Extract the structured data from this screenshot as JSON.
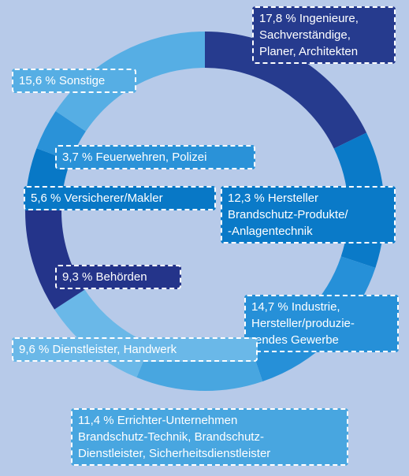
{
  "chart_data": {
    "type": "donut",
    "categories": [
      "Ingenieure,\nSachverständige,\nPlaner, Architekten",
      "Hersteller\nBrandschutz-Produkte/\n-Anlagentechnik",
      "Industrie,\nHersteller/produzie-\nrendes Gewerbe",
      "Errichter-Unternehmen\nBrandschutz-Technik, Brandschutz-\nDienstleister, Sicherheitsdienstleister",
      "Dienstleister, Handwerk",
      "Behörden",
      "Versicherer/Makler",
      "Feuerwehren, Polizei",
      "Sonstige"
    ],
    "values": [
      17.8,
      12.3,
      14.7,
      11.4,
      9.6,
      9.3,
      5.6,
      3.7,
      15.6
    ],
    "value_labels": [
      "17,8 %",
      "12,3 %",
      "14,7 %",
      "11,4 %",
      "9,6 %",
      "9,3 %",
      "5,6 %",
      "3,7 %",
      "15,6 %"
    ],
    "colors": [
      "#263b8e",
      "#0a7ac8",
      "#2690d8",
      "#48a6e0",
      "#6ab8e8",
      "#24348a",
      "#0878c6",
      "#2a92d8",
      "#56aee4"
    ]
  }
}
